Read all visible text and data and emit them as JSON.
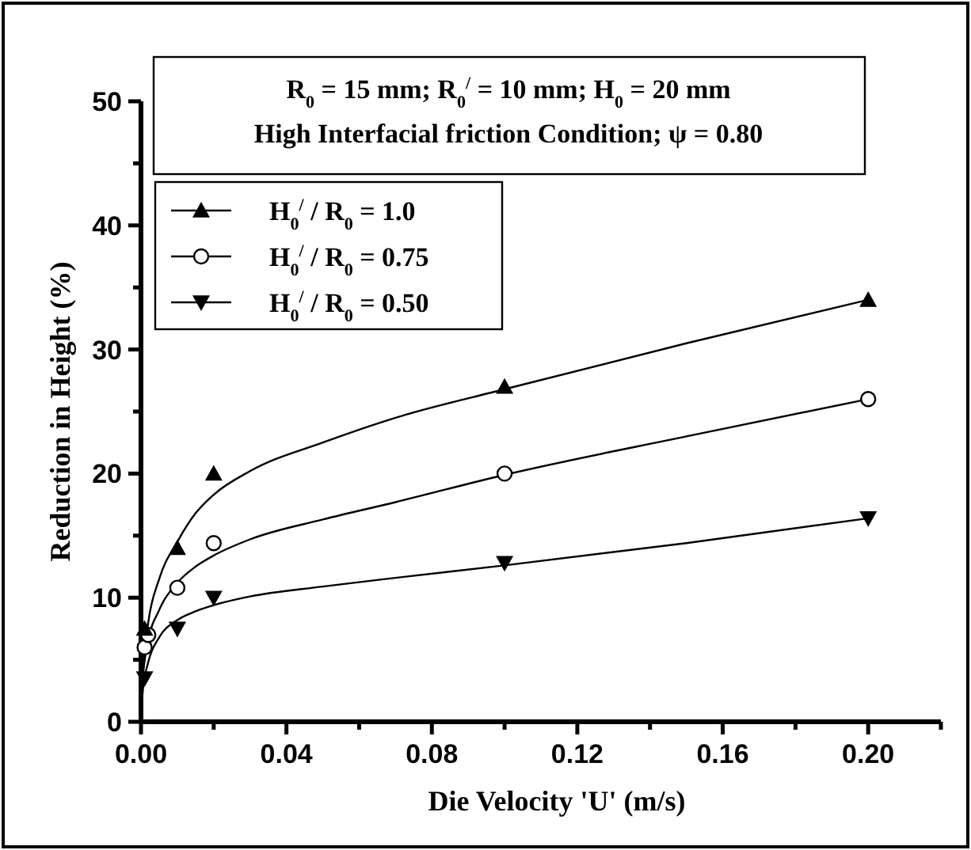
{
  "chart_data": {
    "type": "scatter",
    "xlabel": "Die Velocity 'U' (m/s)",
    "ylabel": "Reduction in Height (%)",
    "annotations": [
      "R$_{0}$ = 15 mm; R$_{0}$$^{/}$ = 10 mm; H$_{0}$ = 20 mm",
      "High Interfacial friction Condition; ψ = 0.80"
    ],
    "xlim": [
      0,
      0.22
    ],
    "ylim": [
      0,
      50
    ],
    "xticks": [
      {
        "value": 0,
        "label": "0.00"
      },
      {
        "value": 0.02,
        "label": null
      },
      {
        "value": 0.04,
        "label": "0.04"
      },
      {
        "value": 0.06,
        "label": null
      },
      {
        "value": 0.08,
        "label": "0.08"
      },
      {
        "value": 0.1,
        "label": null
      },
      {
        "value": 0.12,
        "label": "0.12"
      },
      {
        "value": 0.14,
        "label": null
      },
      {
        "value": 0.16,
        "label": "0.16"
      },
      {
        "value": 0.18,
        "label": null
      },
      {
        "value": 0.2,
        "label": "0.20"
      },
      {
        "value": 0.22,
        "label": null
      }
    ],
    "yticks": [
      0,
      {
        "value": 5,
        "label": null
      },
      10,
      {
        "value": 15,
        "label": null
      },
      20,
      {
        "value": 25,
        "label": null
      },
      30,
      {
        "value": 35,
        "label": null
      },
      40,
      {
        "value": 45,
        "label": null
      },
      50
    ],
    "grid": false,
    "legend": "top left",
    "series": [
      {
        "name": "H$_{0}$$^{/}$ / R$_{0}$ = 1.0",
        "color": "#000000",
        "marker": "triangle",
        "x": [
          0.001,
          0.01,
          0.02,
          0.1,
          0.2
        ],
        "values": [
          7.5,
          14,
          20,
          27,
          34
        ]
      },
      {
        "name": "H$_{0}$$^{/}$ / R$_{0}$ = 0.75",
        "color": "#000000",
        "marker": "circle",
        "x": [
          0.001,
          0.002,
          0.01,
          0.02,
          0.1,
          0.2
        ],
        "values": [
          6,
          7,
          10.8,
          14.4,
          20,
          26
        ]
      },
      {
        "name": "H$_{0}$$^{/}$ / R$_{0}$ = 0.50",
        "color": "#000000",
        "marker": "triangle-down",
        "x": [
          0.001,
          0.01,
          0.02,
          0.1,
          0.2
        ],
        "values": [
          3.5,
          7.5,
          10,
          12.8,
          16.4
        ]
      },
      {
        "type": "line",
        "color": "#000000",
        "marker": "none",
        "x": [
          0,
          0.0005,
          0.002,
          0.005,
          0.01,
          0.015,
          0.02,
          0.03,
          0.05,
          0.07,
          0.1,
          0.15,
          0.2
        ],
        "values": [
          0,
          4,
          8,
          11.5,
          14.5,
          16.8,
          18.3,
          20.2,
          22.5,
          24.5,
          26.8,
          30.5,
          34
        ]
      },
      {
        "type": "line",
        "color": "#000000",
        "marker": "none",
        "x": [
          0,
          0.0005,
          0.002,
          0.005,
          0.01,
          0.015,
          0.02,
          0.03,
          0.05,
          0.07,
          0.1,
          0.15,
          0.2
        ],
        "values": [
          0,
          3.5,
          6.5,
          9,
          11.2,
          12.5,
          13.4,
          14.7,
          16.3,
          17.7,
          19.9,
          23,
          26
        ]
      },
      {
        "type": "line",
        "color": "#000000",
        "marker": "none",
        "x": [
          0,
          0.0005,
          0.002,
          0.005,
          0.01,
          0.015,
          0.02,
          0.03,
          0.05,
          0.07,
          0.1,
          0.15,
          0.2
        ],
        "values": [
          0,
          2.5,
          4.8,
          6.8,
          8.2,
          8.9,
          9.4,
          10.1,
          10.9,
          11.6,
          12.6,
          14.4,
          16.4
        ]
      }
    ]
  }
}
